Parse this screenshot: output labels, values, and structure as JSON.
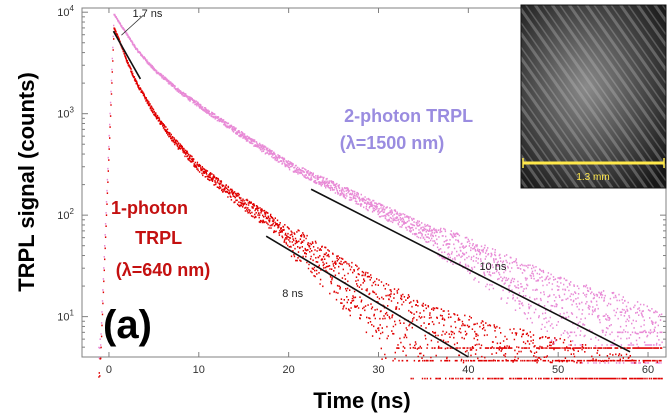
{
  "chart_data": {
    "type": "scatter",
    "xlabel": "Time (ns)",
    "ylabel": "TRPL signal (counts)",
    "panel_label": "(a)",
    "xlim": [
      -3,
      62
    ],
    "ylim": [
      4,
      11000
    ],
    "y_scale": "log",
    "x_ticks": [
      0,
      10,
      20,
      30,
      40,
      50,
      60
    ],
    "y_ticks": [
      {
        "value": 10,
        "mantissa": "10",
        "exp": "1"
      },
      {
        "value": 100,
        "mantissa": "10",
        "exp": "2"
      },
      {
        "value": 1000,
        "mantissa": "10",
        "exp": "3"
      },
      {
        "value": 10000,
        "mantissa": "10",
        "exp": "4"
      }
    ],
    "series": [
      {
        "name_lines": [
          "2-photon TRPL",
          "(λ=1500 nm)"
        ],
        "color": "#e88ad6",
        "label_color": "#9a8ce0",
        "peak_time": 0.5,
        "peak_counts": 9500,
        "noise_floor": 5,
        "decay_points": [
          [
            0.5,
            9500
          ],
          [
            1.7,
            6500
          ],
          [
            3,
            4300
          ],
          [
            5,
            2700
          ],
          [
            8,
            1600
          ],
          [
            12,
            900
          ],
          [
            16,
            520
          ],
          [
            20,
            310
          ],
          [
            25,
            190
          ],
          [
            30,
            115
          ],
          [
            35,
            70
          ],
          [
            40,
            42
          ],
          [
            45,
            25
          ],
          [
            50,
            15
          ],
          [
            55,
            10
          ],
          [
            58,
            8
          ],
          [
            60,
            6
          ]
        ]
      },
      {
        "name_lines": [
          "1-photon",
          "TRPL",
          "(λ=640 nm)"
        ],
        "color": "#e00000",
        "label_color": "#c41010",
        "peak_time": 0.5,
        "peak_counts": 7000,
        "noise_floor": 3.5,
        "decay_points": [
          [
            0.5,
            7000
          ],
          [
            1,
            5500
          ],
          [
            2,
            3200
          ],
          [
            3,
            2000
          ],
          [
            5,
            1000
          ],
          [
            7,
            560
          ],
          [
            10,
            290
          ],
          [
            14,
            150
          ],
          [
            18,
            85
          ],
          [
            22,
            45
          ],
          [
            26,
            25
          ],
          [
            30,
            14
          ],
          [
            33,
            9
          ],
          [
            36,
            6
          ],
          [
            40,
            4.5
          ]
        ]
      }
    ],
    "fit_lines": [
      {
        "label": "1.7 ns",
        "points": [
          [
            0.5,
            6500
          ],
          [
            3.5,
            2200
          ]
        ]
      },
      {
        "label": "10 ns",
        "points": [
          [
            22.5,
            180
          ],
          [
            58,
            4.5
          ]
        ]
      },
      {
        "label": "8 ns",
        "points": [
          [
            17.5,
            62
          ],
          [
            40,
            4
          ]
        ]
      }
    ],
    "inset": {
      "scale_bar_label": "1.3 mm"
    }
  }
}
